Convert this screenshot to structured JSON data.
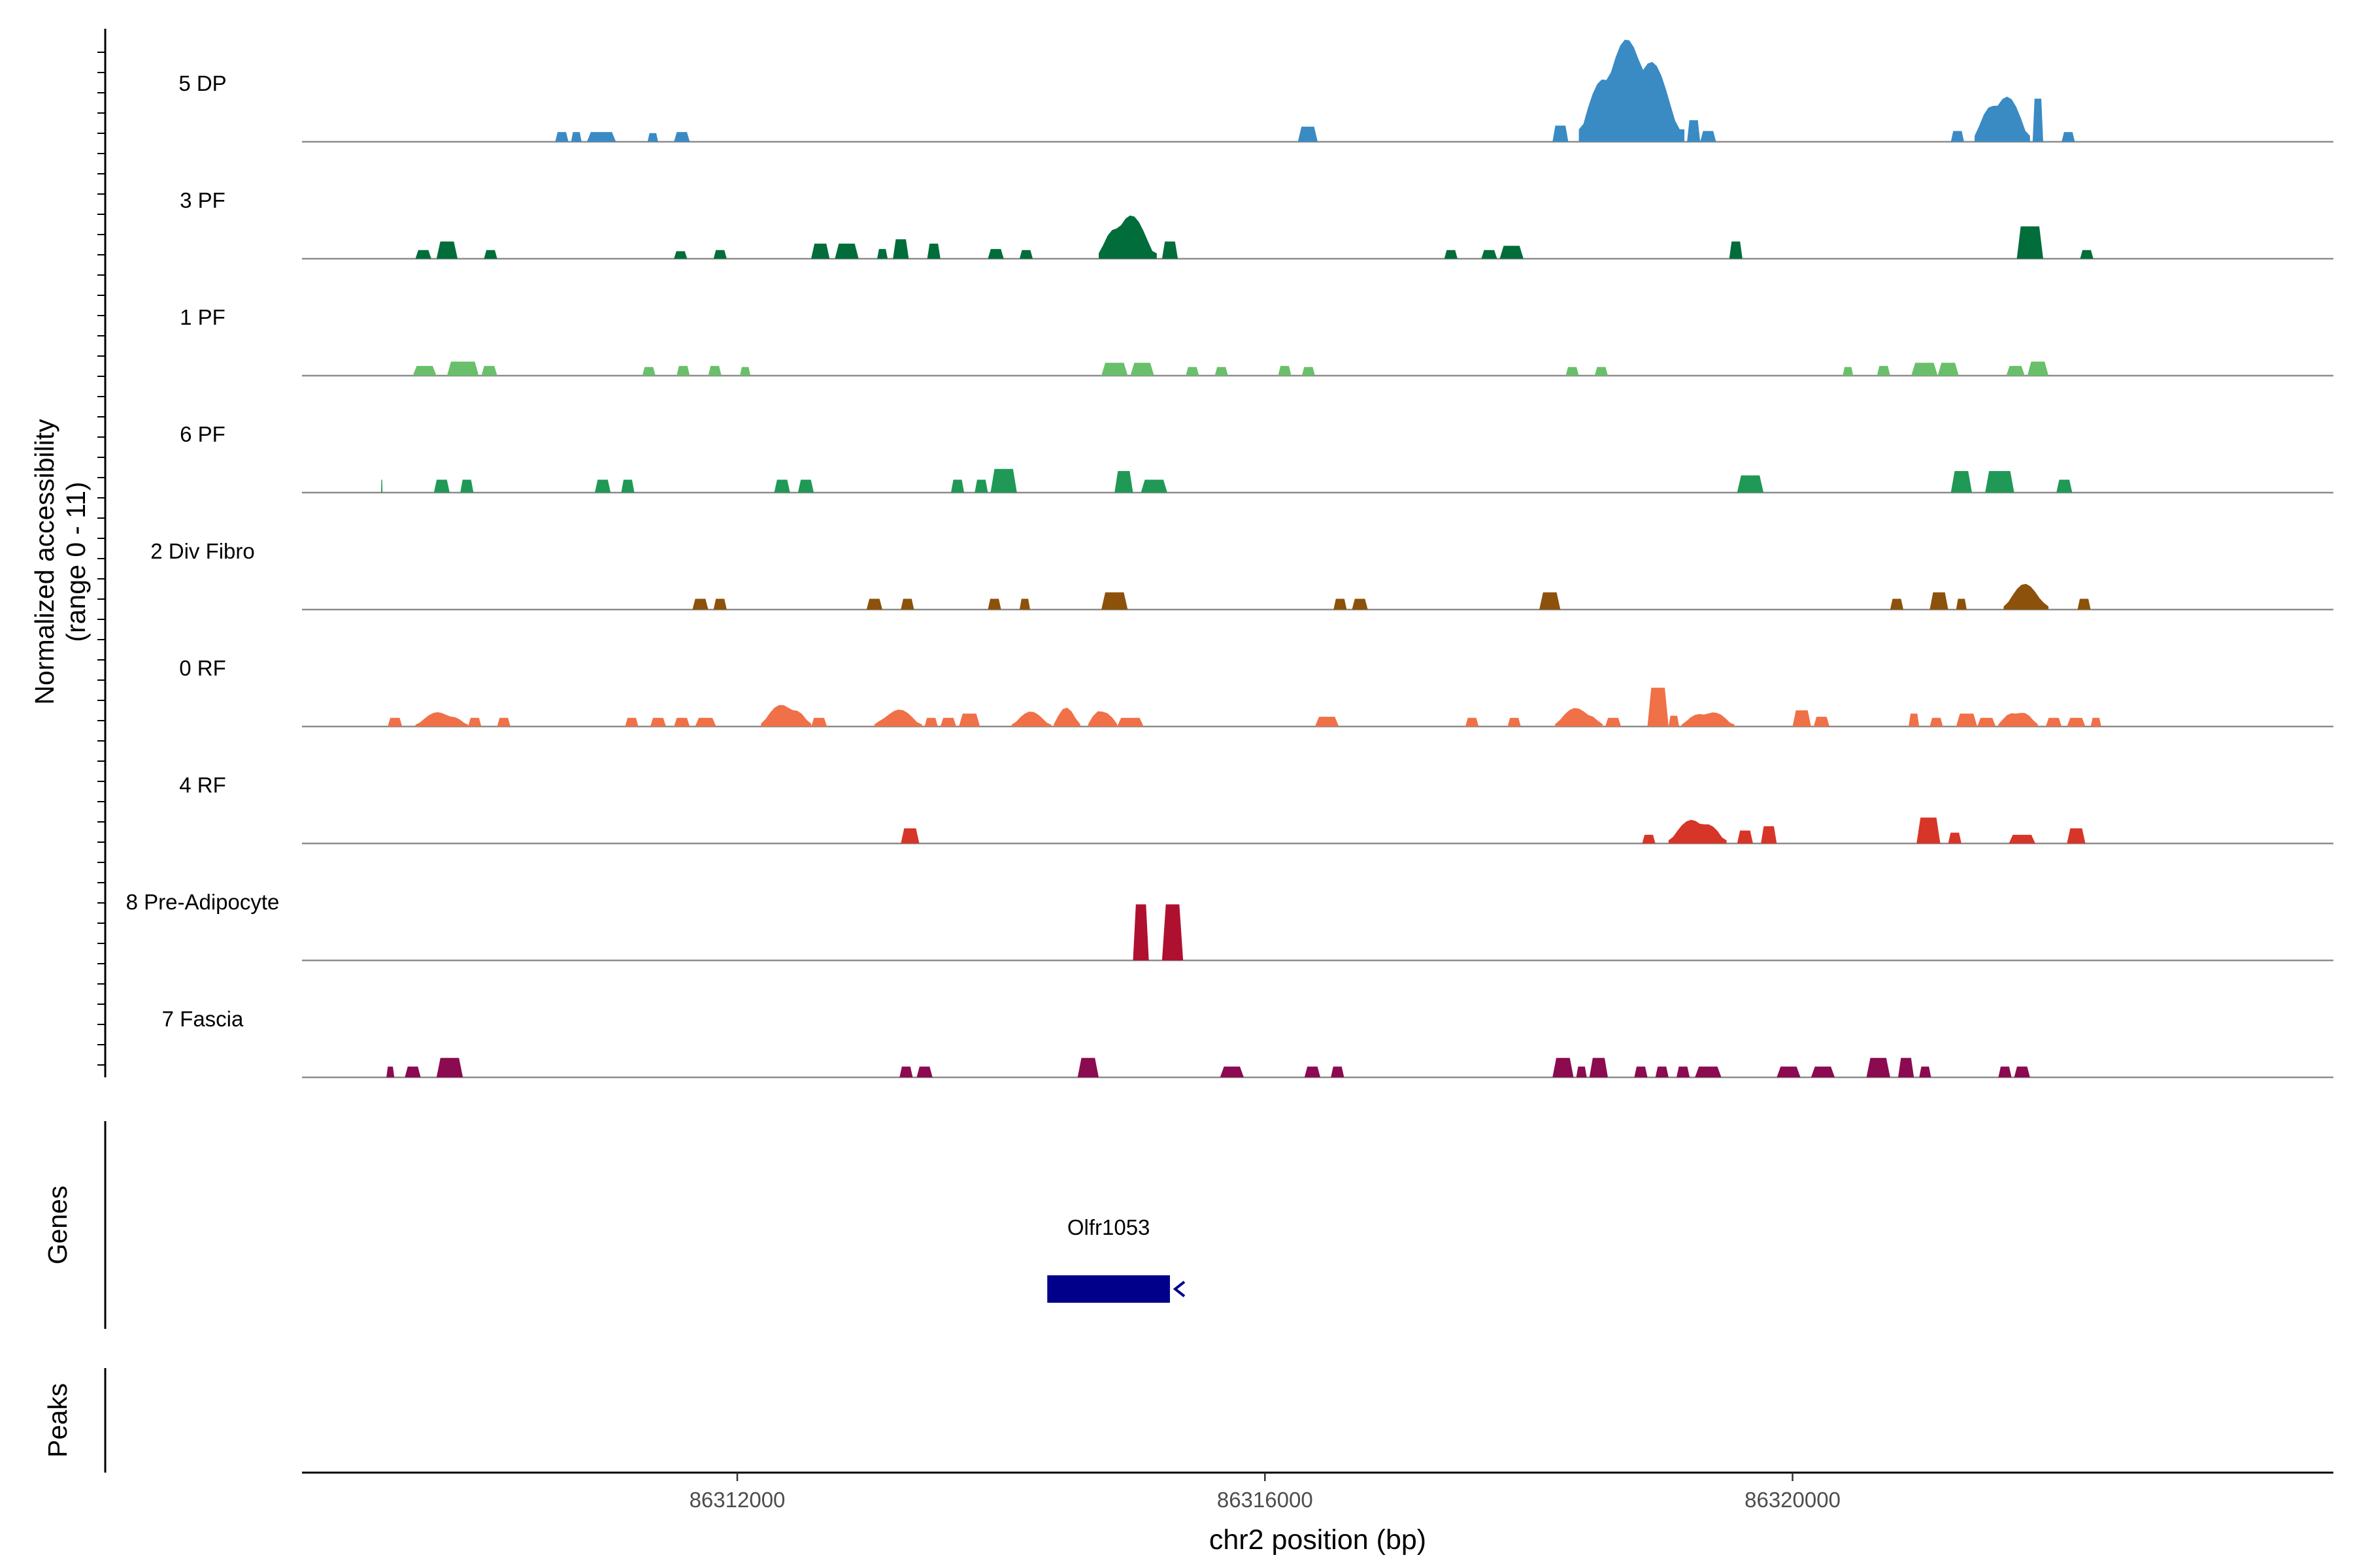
{
  "chart_data": {
    "type": "area",
    "panel_label_ylabel": "Normalized accessibility\n(range 0 - 11)",
    "ylabel_line1": "Normalized accessibility",
    "ylabel_line2": "(range 0 - 11)",
    "ylim": [
      0,
      11
    ],
    "xlabel": "chr2 position (bp)",
    "xlim": [
      86308700,
      86324100
    ],
    "xticks": [
      86312000,
      86316000,
      86320000
    ],
    "xtick_labels": [
      "86312000",
      "86316000",
      "86320000"
    ],
    "tracks": [
      {
        "name": "5 DP",
        "color": "#3a8bc4",
        "peaks": [
          {
            "start": 86310620,
            "end": 86310720,
            "h": 0.9
          },
          {
            "start": 86310740,
            "end": 86310820,
            "h": 0.9
          },
          {
            "start": 86310860,
            "end": 86311080,
            "h": 0.9
          },
          {
            "start": 86311320,
            "end": 86311400,
            "h": 0.8
          },
          {
            "start": 86311520,
            "end": 86311640,
            "h": 0.9
          },
          {
            "start": 86316250,
            "end": 86316400,
            "h": 1.4
          },
          {
            "start": 86318180,
            "end": 86318300,
            "h": 1.5
          },
          {
            "start": 86318380,
            "end": 86319180,
            "h": 9.6,
            "shape": "jagged"
          },
          {
            "start": 86319200,
            "end": 86319300,
            "h": 2.0
          },
          {
            "start": 86319300,
            "end": 86319420,
            "h": 1.0
          },
          {
            "start": 86321200,
            "end": 86321300,
            "h": 1.0
          },
          {
            "start": 86321380,
            "end": 86321800,
            "h": 4.6,
            "shape": "jagged"
          },
          {
            "start": 86321820,
            "end": 86321900,
            "h": 4.0
          },
          {
            "start": 86322040,
            "end": 86322140,
            "h": 0.9
          }
        ]
      },
      {
        "name": "3 PF",
        "color": "#006d3a",
        "peaks": [
          {
            "start": 86309560,
            "end": 86309680,
            "h": 0.8
          },
          {
            "start": 86309720,
            "end": 86309880,
            "h": 1.6
          },
          {
            "start": 86310080,
            "end": 86310180,
            "h": 0.8
          },
          {
            "start": 86311520,
            "end": 86311620,
            "h": 0.7
          },
          {
            "start": 86311820,
            "end": 86311920,
            "h": 0.8
          },
          {
            "start": 86312560,
            "end": 86312700,
            "h": 1.4
          },
          {
            "start": 86312740,
            "end": 86312920,
            "h": 1.4
          },
          {
            "start": 86313060,
            "end": 86313140,
            "h": 0.9
          },
          {
            "start": 86313180,
            "end": 86313300,
            "h": 1.8
          },
          {
            "start": 86313440,
            "end": 86313540,
            "h": 1.4
          },
          {
            "start": 86313900,
            "end": 86314020,
            "h": 0.9
          },
          {
            "start": 86314140,
            "end": 86314240,
            "h": 0.8
          },
          {
            "start": 86314740,
            "end": 86315180,
            "h": 4.2,
            "shape": "jagged"
          },
          {
            "start": 86315220,
            "end": 86315340,
            "h": 1.6
          },
          {
            "start": 86317360,
            "end": 86317460,
            "h": 0.8
          },
          {
            "start": 86317640,
            "end": 86317760,
            "h": 0.8
          },
          {
            "start": 86317780,
            "end": 86317960,
            "h": 1.2
          },
          {
            "start": 86319520,
            "end": 86319620,
            "h": 1.6
          },
          {
            "start": 86321700,
            "end": 86321900,
            "h": 3.0
          },
          {
            "start": 86322180,
            "end": 86322280,
            "h": 0.8
          }
        ]
      },
      {
        "name": "1 PF",
        "color": "#6abf6a",
        "peaks": [
          {
            "start": 86309540,
            "end": 86309720,
            "h": 0.9
          },
          {
            "start": 86309800,
            "end": 86310040,
            "h": 1.3
          },
          {
            "start": 86310060,
            "end": 86310180,
            "h": 0.9
          },
          {
            "start": 86311280,
            "end": 86311380,
            "h": 0.8
          },
          {
            "start": 86311540,
            "end": 86311640,
            "h": 0.9
          },
          {
            "start": 86311780,
            "end": 86311880,
            "h": 0.9
          },
          {
            "start": 86312020,
            "end": 86312100,
            "h": 0.8
          },
          {
            "start": 86314760,
            "end": 86314960,
            "h": 1.2
          },
          {
            "start": 86314980,
            "end": 86315160,
            "h": 1.2
          },
          {
            "start": 86315400,
            "end": 86315500,
            "h": 0.8
          },
          {
            "start": 86315620,
            "end": 86315720,
            "h": 0.8
          },
          {
            "start": 86316100,
            "end": 86316200,
            "h": 0.9
          },
          {
            "start": 86316280,
            "end": 86316380,
            "h": 0.8
          },
          {
            "start": 86318280,
            "end": 86318380,
            "h": 0.8
          },
          {
            "start": 86318500,
            "end": 86318600,
            "h": 0.8
          },
          {
            "start": 86320380,
            "end": 86320460,
            "h": 0.8
          },
          {
            "start": 86320640,
            "end": 86320740,
            "h": 0.9
          },
          {
            "start": 86320900,
            "end": 86321100,
            "h": 1.2
          },
          {
            "start": 86321100,
            "end": 86321260,
            "h": 1.2
          },
          {
            "start": 86321620,
            "end": 86321760,
            "h": 0.9
          },
          {
            "start": 86321780,
            "end": 86321940,
            "h": 1.3
          }
        ]
      },
      {
        "name": "6 PF",
        "color": "#1f9955",
        "peaks": [
          {
            "start": 86309300,
            "end": 86309310,
            "h": 1.2
          },
          {
            "start": 86309700,
            "end": 86309820,
            "h": 1.2
          },
          {
            "start": 86309900,
            "end": 86310000,
            "h": 1.2
          },
          {
            "start": 86310920,
            "end": 86311040,
            "h": 1.2
          },
          {
            "start": 86311120,
            "end": 86311220,
            "h": 1.2
          },
          {
            "start": 86312280,
            "end": 86312400,
            "h": 1.2
          },
          {
            "start": 86312460,
            "end": 86312580,
            "h": 1.2
          },
          {
            "start": 86313620,
            "end": 86313720,
            "h": 1.2
          },
          {
            "start": 86313800,
            "end": 86313900,
            "h": 1.2
          },
          {
            "start": 86313920,
            "end": 86314120,
            "h": 2.2
          },
          {
            "start": 86314860,
            "end": 86315000,
            "h": 2.0
          },
          {
            "start": 86315060,
            "end": 86315260,
            "h": 1.2
          },
          {
            "start": 86319580,
            "end": 86319780,
            "h": 1.6
          },
          {
            "start": 86321200,
            "end": 86321360,
            "h": 2.0
          },
          {
            "start": 86321460,
            "end": 86321680,
            "h": 2.0
          },
          {
            "start": 86322000,
            "end": 86322120,
            "h": 1.2
          }
        ]
      },
      {
        "name": "2 Div Fibro",
        "color": "#8c510a",
        "peaks": [
          {
            "start": 86311660,
            "end": 86311780,
            "h": 1.0
          },
          {
            "start": 86311820,
            "end": 86311920,
            "h": 1.0
          },
          {
            "start": 86312980,
            "end": 86313100,
            "h": 1.0
          },
          {
            "start": 86313240,
            "end": 86313340,
            "h": 1.0
          },
          {
            "start": 86313900,
            "end": 86314000,
            "h": 1.0
          },
          {
            "start": 86314140,
            "end": 86314220,
            "h": 1.0
          },
          {
            "start": 86314760,
            "end": 86314960,
            "h": 1.6
          },
          {
            "start": 86316520,
            "end": 86316620,
            "h": 1.0
          },
          {
            "start": 86316660,
            "end": 86316780,
            "h": 1.0
          },
          {
            "start": 86318080,
            "end": 86318240,
            "h": 1.6
          },
          {
            "start": 86320740,
            "end": 86320840,
            "h": 1.0
          },
          {
            "start": 86321040,
            "end": 86321180,
            "h": 1.6
          },
          {
            "start": 86321240,
            "end": 86321320,
            "h": 1.0
          },
          {
            "start": 86321600,
            "end": 86321940,
            "h": 2.4,
            "shape": "jagged"
          },
          {
            "start": 86322160,
            "end": 86322260,
            "h": 1.0
          }
        ]
      },
      {
        "name": "0 RF",
        "color": "#f07048",
        "peaks": [
          {
            "start": 86309350,
            "end": 86309460,
            "h": 0.8
          },
          {
            "start": 86309560,
            "end": 86309960,
            "h": 1.4,
            "shape": "jagged"
          },
          {
            "start": 86309960,
            "end": 86310060,
            "h": 0.8
          },
          {
            "start": 86310180,
            "end": 86310280,
            "h": 0.8
          },
          {
            "start": 86311150,
            "end": 86311250,
            "h": 0.8
          },
          {
            "start": 86311340,
            "end": 86311460,
            "h": 0.8
          },
          {
            "start": 86311520,
            "end": 86311640,
            "h": 0.8
          },
          {
            "start": 86311680,
            "end": 86311840,
            "h": 0.8
          },
          {
            "start": 86312180,
            "end": 86312560,
            "h": 2.2,
            "shape": "jagged"
          },
          {
            "start": 86312560,
            "end": 86312680,
            "h": 0.8
          },
          {
            "start": 86313040,
            "end": 86313400,
            "h": 1.6,
            "shape": "jagged"
          },
          {
            "start": 86313420,
            "end": 86313520,
            "h": 0.8
          },
          {
            "start": 86313540,
            "end": 86313660,
            "h": 0.8
          },
          {
            "start": 86313680,
            "end": 86313840,
            "h": 1.2
          },
          {
            "start": 86314080,
            "end": 86314380,
            "h": 1.4,
            "shape": "jagged"
          },
          {
            "start": 86314400,
            "end": 86314600,
            "h": 1.8,
            "shape": "jagged"
          },
          {
            "start": 86314660,
            "end": 86314880,
            "h": 1.8,
            "shape": "jagged"
          },
          {
            "start": 86314880,
            "end": 86315080,
            "h": 0.8
          },
          {
            "start": 86316380,
            "end": 86316560,
            "h": 0.9
          },
          {
            "start": 86317520,
            "end": 86317620,
            "h": 0.8
          },
          {
            "start": 86317840,
            "end": 86317940,
            "h": 0.8
          },
          {
            "start": 86318200,
            "end": 86318560,
            "h": 1.8,
            "shape": "jagged"
          },
          {
            "start": 86318580,
            "end": 86318700,
            "h": 0.8
          },
          {
            "start": 86318900,
            "end": 86319060,
            "h": 3.6
          },
          {
            "start": 86319060,
            "end": 86319140,
            "h": 1.0
          },
          {
            "start": 86319160,
            "end": 86319560,
            "h": 1.5,
            "shape": "jagged"
          },
          {
            "start": 86320000,
            "end": 86320140,
            "h": 1.5
          },
          {
            "start": 86320160,
            "end": 86320280,
            "h": 0.9
          },
          {
            "start": 86320880,
            "end": 86320960,
            "h": 1.2
          },
          {
            "start": 86321040,
            "end": 86321140,
            "h": 0.8
          },
          {
            "start": 86321240,
            "end": 86321400,
            "h": 1.2
          },
          {
            "start": 86321400,
            "end": 86321540,
            "h": 0.8
          },
          {
            "start": 86321560,
            "end": 86321860,
            "h": 1.6,
            "shape": "jagged"
          },
          {
            "start": 86321920,
            "end": 86322040,
            "h": 0.8
          },
          {
            "start": 86322080,
            "end": 86322220,
            "h": 0.8
          },
          {
            "start": 86322260,
            "end": 86322340,
            "h": 0.8
          }
        ]
      },
      {
        "name": "4 RF",
        "color": "#d73527",
        "peaks": [
          {
            "start": 86313240,
            "end": 86313380,
            "h": 1.4
          },
          {
            "start": 86318860,
            "end": 86318960,
            "h": 0.8
          },
          {
            "start": 86319060,
            "end": 86319500,
            "h": 2.4,
            "shape": "jagged"
          },
          {
            "start": 86319580,
            "end": 86319700,
            "h": 1.2
          },
          {
            "start": 86319760,
            "end": 86319880,
            "h": 1.6
          },
          {
            "start": 86320940,
            "end": 86321120,
            "h": 2.4
          },
          {
            "start": 86321180,
            "end": 86321280,
            "h": 1.0
          },
          {
            "start": 86321640,
            "end": 86321840,
            "h": 0.8
          },
          {
            "start": 86322080,
            "end": 86322220,
            "h": 1.4
          }
        ]
      },
      {
        "name": "8 Pre-Adipocyte",
        "color": "#b0102f",
        "peaks": [
          {
            "start": 86315000,
            "end": 86315120,
            "h": 5.2
          },
          {
            "start": 86315220,
            "end": 86315380,
            "h": 5.2
          }
        ]
      },
      {
        "name": "7 Fascia",
        "color": "#8b0a50",
        "peaks": [
          {
            "start": 86309340,
            "end": 86309400,
            "h": 1.0
          },
          {
            "start": 86309480,
            "end": 86309600,
            "h": 1.0
          },
          {
            "start": 86309720,
            "end": 86309920,
            "h": 1.8
          },
          {
            "start": 86313230,
            "end": 86313330,
            "h": 1.0
          },
          {
            "start": 86313360,
            "end": 86313480,
            "h": 1.0
          },
          {
            "start": 86314580,
            "end": 86314740,
            "h": 1.8
          },
          {
            "start": 86315660,
            "end": 86315840,
            "h": 1.0
          },
          {
            "start": 86316300,
            "end": 86316420,
            "h": 1.0
          },
          {
            "start": 86316500,
            "end": 86316600,
            "h": 1.0
          },
          {
            "start": 86318180,
            "end": 86318340,
            "h": 1.8
          },
          {
            "start": 86318360,
            "end": 86318440,
            "h": 1.0
          },
          {
            "start": 86318460,
            "end": 86318600,
            "h": 1.8
          },
          {
            "start": 86318800,
            "end": 86318900,
            "h": 1.0
          },
          {
            "start": 86318960,
            "end": 86319060,
            "h": 1.0
          },
          {
            "start": 86319120,
            "end": 86319220,
            "h": 1.0
          },
          {
            "start": 86319260,
            "end": 86319460,
            "h": 1.0
          },
          {
            "start": 86319880,
            "end": 86320060,
            "h": 1.0
          },
          {
            "start": 86320140,
            "end": 86320320,
            "h": 1.0
          },
          {
            "start": 86320560,
            "end": 86320740,
            "h": 1.8
          },
          {
            "start": 86320800,
            "end": 86320920,
            "h": 1.8
          },
          {
            "start": 86320960,
            "end": 86321050,
            "h": 1.0
          },
          {
            "start": 86321560,
            "end": 86321660,
            "h": 1.0
          },
          {
            "start": 86321680,
            "end": 86321800,
            "h": 1.0
          }
        ]
      }
    ],
    "genes_label": "Genes",
    "peaks_label": "Peaks",
    "gene": {
      "name": "Olfr1053",
      "start": 86314350,
      "end": 86315280,
      "strand": "-",
      "color": "#00008b"
    }
  }
}
